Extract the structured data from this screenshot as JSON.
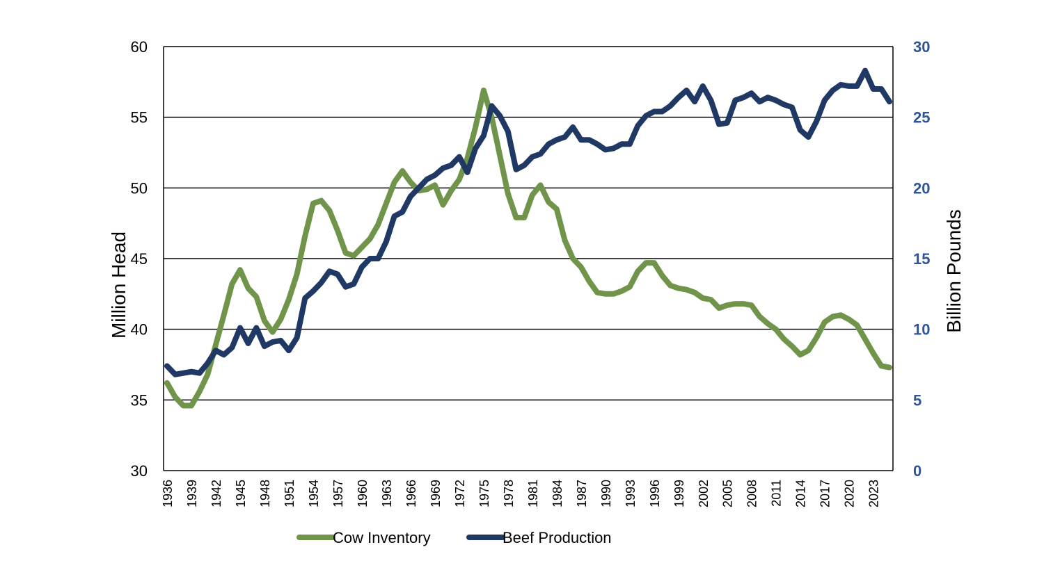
{
  "chart_data": {
    "type": "line",
    "title": "",
    "x": [
      1936,
      1937,
      1938,
      1939,
      1940,
      1941,
      1942,
      1943,
      1944,
      1945,
      1946,
      1947,
      1948,
      1949,
      1950,
      1951,
      1952,
      1953,
      1954,
      1955,
      1956,
      1957,
      1958,
      1959,
      1960,
      1961,
      1962,
      1963,
      1964,
      1965,
      1966,
      1967,
      1968,
      1969,
      1970,
      1971,
      1972,
      1973,
      1974,
      1975,
      1976,
      1977,
      1978,
      1979,
      1980,
      1981,
      1982,
      1983,
      1984,
      1985,
      1986,
      1987,
      1988,
      1989,
      1990,
      1991,
      1992,
      1993,
      1994,
      1995,
      1996,
      1997,
      1998,
      1999,
      2000,
      2001,
      2002,
      2003,
      2004,
      2005,
      2006,
      2007,
      2008,
      2009,
      2010,
      2011,
      2012,
      2013,
      2014,
      2015,
      2016,
      2017,
      2018,
      2019,
      2020,
      2021,
      2022,
      2023,
      2024,
      2025
    ],
    "x_tick_labels": [
      "1936",
      "1939",
      "1942",
      "1945",
      "1948",
      "1951",
      "1954",
      "1957",
      "1960",
      "1963",
      "1966",
      "1969",
      "1972",
      "1975",
      "1978",
      "1981",
      "1984",
      "1987",
      "1990",
      "1993",
      "1996",
      "1999",
      "2002",
      "2005",
      "2008",
      "2011",
      "2014",
      "2017",
      "2020",
      "2023"
    ],
    "y_left": {
      "label": "Million Head",
      "ylim": [
        30,
        60
      ],
      "ticks": [
        "30",
        "35",
        "40",
        "45",
        "50",
        "55",
        "60"
      ]
    },
    "y_right": {
      "label": "Billion Pounds",
      "ylim": [
        0,
        30
      ],
      "ticks": [
        "0",
        "5",
        "10",
        "15",
        "20",
        "25",
        "30"
      ]
    },
    "grid": true,
    "legend_position": "bottom",
    "series": [
      {
        "name": "Cow Inventory",
        "axis": "left",
        "color": "#70954a",
        "values": [
          36.2,
          35.2,
          34.6,
          34.6,
          35.6,
          36.8,
          38.9,
          41.0,
          43.2,
          44.2,
          42.9,
          42.3,
          40.6,
          39.8,
          40.7,
          42.1,
          43.9,
          46.6,
          48.9,
          49.1,
          48.4,
          47.0,
          45.4,
          45.2,
          45.8,
          46.4,
          47.4,
          48.9,
          50.4,
          51.2,
          50.4,
          49.8,
          49.9,
          50.2,
          48.8,
          49.8,
          50.6,
          52.1,
          54.3,
          56.9,
          55.0,
          52.3,
          49.6,
          47.9,
          47.9,
          49.5,
          50.2,
          49.0,
          48.5,
          46.3,
          45.0,
          44.4,
          43.4,
          42.6,
          42.5,
          42.5,
          42.7,
          43.0,
          44.1,
          44.7,
          44.7,
          43.8,
          43.1,
          42.9,
          42.8,
          42.6,
          42.2,
          42.1,
          41.5,
          41.7,
          41.8,
          41.8,
          41.7,
          40.9,
          40.4,
          40.0,
          39.3,
          38.8,
          38.2,
          38.5,
          39.4,
          40.5,
          40.9,
          41.0,
          40.7,
          40.3,
          39.3,
          38.3,
          37.4,
          37.3
        ]
      },
      {
        "name": "Beef Production",
        "axis": "right",
        "color": "#1f3864",
        "values": [
          7.4,
          6.8,
          6.9,
          7.0,
          6.9,
          7.6,
          8.5,
          8.2,
          8.7,
          10.1,
          9.0,
          10.1,
          8.8,
          9.1,
          9.2,
          8.5,
          9.4,
          12.2,
          12.7,
          13.3,
          14.1,
          13.9,
          13.0,
          13.2,
          14.4,
          15.0,
          15.0,
          16.2,
          18.0,
          18.3,
          19.4,
          20.0,
          20.6,
          20.9,
          21.4,
          21.6,
          22.2,
          21.1,
          22.8,
          23.7,
          25.8,
          25.1,
          24.0,
          21.3,
          21.6,
          22.2,
          22.4,
          23.1,
          23.4,
          23.6,
          24.3,
          23.4,
          23.4,
          23.1,
          22.7,
          22.8,
          23.1,
          23.1,
          24.4,
          25.1,
          25.4,
          25.4,
          25.8,
          26.4,
          26.9,
          26.1,
          27.2,
          26.2,
          24.5,
          24.6,
          26.2,
          26.4,
          26.7,
          26.1,
          26.4,
          26.2,
          25.9,
          25.7,
          24.1,
          23.6,
          24.7,
          26.2,
          26.9,
          27.3,
          27.2,
          27.2,
          28.3,
          27.0,
          27.0,
          26.1
        ]
      }
    ]
  }
}
